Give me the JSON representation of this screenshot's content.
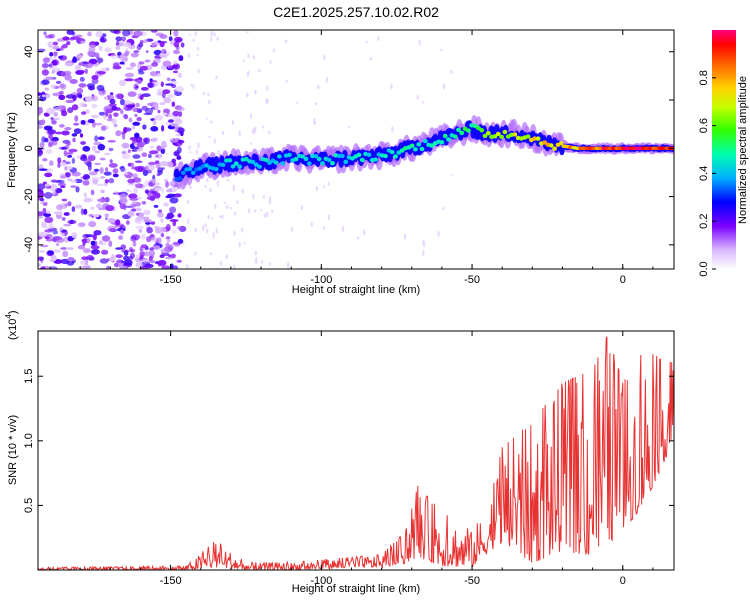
{
  "title": "C2E1.2025.257.10.02.R02",
  "chart_data": [
    {
      "type": "heatmap",
      "xlabel": "Height of straight line (km)",
      "ylabel": "Frequency (Hz)",
      "xlim": [
        -194,
        17
      ],
      "ylim": [
        -50,
        49
      ],
      "xticks": [
        -150,
        -100,
        -50,
        0
      ],
      "yticks": [
        -40,
        -20,
        0,
        20,
        40
      ],
      "colorbar": {
        "label": "Normalized spectral amplitude",
        "range": [
          0,
          1
        ],
        "ticks": [
          0.0,
          0.2,
          0.4,
          0.6,
          0.8
        ]
      },
      "ridge": [
        {
          "x": -148,
          "y": -12,
          "amp": 0.35
        },
        {
          "x": -140,
          "y": -8,
          "amp": 0.4
        },
        {
          "x": -130,
          "y": -6,
          "amp": 0.45
        },
        {
          "x": -120,
          "y": -6,
          "amp": 0.45
        },
        {
          "x": -110,
          "y": -4,
          "amp": 0.45
        },
        {
          "x": -100,
          "y": -5,
          "amp": 0.45
        },
        {
          "x": -90,
          "y": -4,
          "amp": 0.45
        },
        {
          "x": -80,
          "y": -3,
          "amp": 0.45
        },
        {
          "x": -70,
          "y": 0,
          "amp": 0.5
        },
        {
          "x": -60,
          "y": 4,
          "amp": 0.5
        },
        {
          "x": -50,
          "y": 8,
          "amp": 0.55
        },
        {
          "x": -45,
          "y": 6,
          "amp": 0.7
        },
        {
          "x": -35,
          "y": 6,
          "amp": 0.7
        },
        {
          "x": -25,
          "y": 2,
          "amp": 0.8
        },
        {
          "x": -15,
          "y": 0,
          "amp": 0.85
        },
        {
          "x": -5,
          "y": 0,
          "amp": 0.95
        },
        {
          "x": 5,
          "y": 0,
          "amp": 1.0
        },
        {
          "x": 17,
          "y": 0,
          "amp": 1.0
        }
      ],
      "noise_region": {
        "x_from": -194,
        "x_to": -146,
        "freq_range": [
          -50,
          49
        ],
        "amp_max": 0.2
      }
    },
    {
      "type": "line",
      "xlabel": "Height of straight line (km)",
      "ylabel": "SNR (10 * v/v)",
      "y_multiplier": "(x10",
      "y_exponent": "4",
      "y_multiplier_close": ")",
      "xlim": [
        -194,
        17
      ],
      "ylim": [
        0,
        1.85
      ],
      "xticks": [
        -150,
        -100,
        -50,
        0
      ],
      "yticks": [
        0.5,
        1.0,
        1.5
      ],
      "series": [
        {
          "name": "SNR",
          "color": "#e83232",
          "envelope": [
            {
              "x": -194,
              "lo": 0.0,
              "hi": 0.02
            },
            {
              "x": -145,
              "lo": 0.0,
              "hi": 0.03
            },
            {
              "x": -135,
              "lo": 0.02,
              "hi": 0.23
            },
            {
              "x": -125,
              "lo": 0.0,
              "hi": 0.06
            },
            {
              "x": -110,
              "lo": 0.0,
              "hi": 0.06
            },
            {
              "x": -95,
              "lo": 0.01,
              "hi": 0.09
            },
            {
              "x": -80,
              "lo": 0.02,
              "hi": 0.12
            },
            {
              "x": -72,
              "lo": 0.05,
              "hi": 0.3
            },
            {
              "x": -68,
              "lo": 0.1,
              "hi": 0.65
            },
            {
              "x": -60,
              "lo": 0.03,
              "hi": 0.45
            },
            {
              "x": -50,
              "lo": 0.02,
              "hi": 0.3
            },
            {
              "x": -44,
              "lo": 0.15,
              "hi": 0.55
            },
            {
              "x": -40,
              "lo": 0.2,
              "hi": 0.95
            },
            {
              "x": -30,
              "lo": 0.05,
              "hi": 1.15
            },
            {
              "x": -20,
              "lo": 0.15,
              "hi": 1.45
            },
            {
              "x": -10,
              "lo": 0.1,
              "hi": 1.55
            },
            {
              "x": -5,
              "lo": 0.2,
              "hi": 1.82
            },
            {
              "x": 0,
              "lo": 0.3,
              "hi": 1.45
            },
            {
              "x": 7,
              "lo": 0.5,
              "hi": 1.7
            },
            {
              "x": 17,
              "lo": 1.0,
              "hi": 1.6
            }
          ]
        }
      ]
    }
  ]
}
